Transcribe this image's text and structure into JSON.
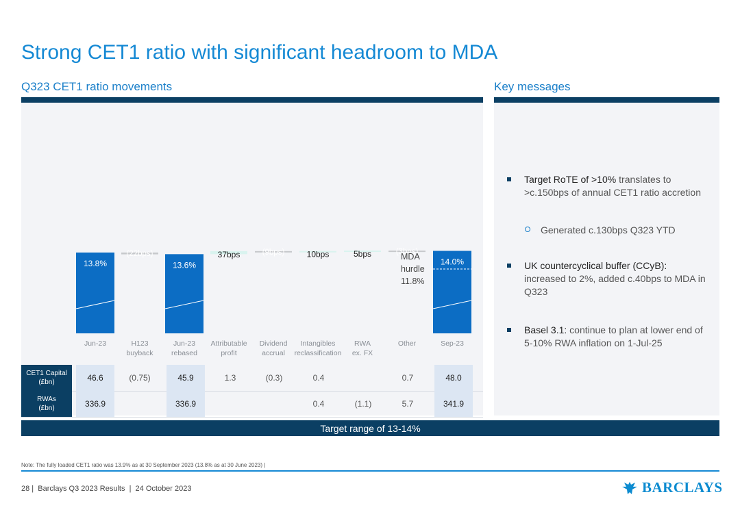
{
  "title": "Strong CET1 ratio with significant headroom to MDA",
  "left_header": "Q323 CET1 ratio movements",
  "right_header": "Key messages",
  "colors": {
    "accent": "#1589d4",
    "navy": "#0b3f63",
    "bar_blue": "#0c6dc4",
    "increase": "#d9f3ef",
    "decrease": "#c7c9cc",
    "cell_highlight": "#dce6f3"
  },
  "chart_data": {
    "type": "bar",
    "subtype": "waterfall",
    "categories": [
      "Jun-23",
      "H123 buyback",
      "Jun-23 rebased",
      "Attributable profit",
      "Dividend accrual",
      "Intangibles reclassification",
      "RWA ex. FX",
      "Other",
      "Sep-23"
    ],
    "category_lines": [
      [
        "Jun-23"
      ],
      [
        "H123",
        "buyback"
      ],
      [
        "Jun-23",
        "rebased"
      ],
      [
        "Attributable",
        "profit"
      ],
      [
        "Dividend",
        "accrual"
      ],
      [
        "Intangibles",
        "reclassification"
      ],
      [
        "RWA",
        "ex. FX"
      ],
      [
        "Other"
      ],
      [
        "Sep-23"
      ]
    ],
    "kinds": [
      "total",
      "decrease",
      "total",
      "increase",
      "decrease",
      "increase",
      "increase",
      "decrease",
      "total"
    ],
    "values_pct": [
      13.8,
      -0.22,
      13.6,
      0.37,
      -0.09,
      0.1,
      0.05,
      -0.03,
      14.0
    ],
    "labels": [
      "13.8%",
      "(22bps)",
      "13.6%",
      "37bps",
      "(9bps)",
      "10bps",
      "5bps",
      "(3bps)",
      "14.0%"
    ],
    "reference_line": {
      "value": 11.8,
      "label_lines": [
        "MDA",
        "hurdle",
        "11.8%"
      ]
    }
  },
  "table": {
    "rows": [
      {
        "header_lines": [
          "CET1 Capital",
          "(£bn)"
        ],
        "cells": [
          "46.6",
          "(0.75)",
          "45.9",
          "1.3",
          "(0.3)",
          "0.4",
          "",
          "0.7",
          "48.0"
        ]
      },
      {
        "header_lines": [
          "RWAs",
          "(£bn)"
        ],
        "cells": [
          "336.9",
          "",
          "336.9",
          "",
          "",
          "0.4",
          "(1.1)",
          "5.7",
          "341.9"
        ]
      }
    ]
  },
  "banner": "Target range of 13-14%",
  "key_messages": [
    {
      "bold": "Target RoTE of >10%",
      "text": " translates to >c.150bps of annual CET1 ratio accretion",
      "sub": "Generated c.130bps Q323 YTD"
    },
    {
      "bold": "UK countercyclical buffer (CCyB):",
      "text": " increased to 2%, added c.40bps to MDA in Q323"
    },
    {
      "bold": "Basel 3.1:",
      "text": " continue to plan at lower end of 5-10% RWA inflation on 1-Jul-25"
    }
  ],
  "note": "Note: The fully loaded CET1 ratio was 13.9% as at 30 September 2023 (13.8% as at 30 June 2023) |",
  "footer": {
    "page": "28",
    "doc": "Barclays Q3 2023 Results",
    "date": "24 October 2023"
  },
  "logo_text": "BARCLAYS"
}
